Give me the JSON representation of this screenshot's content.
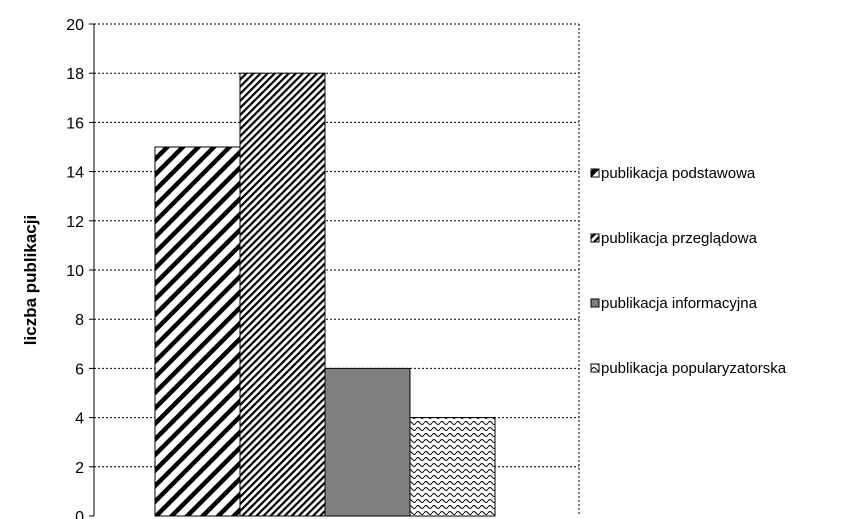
{
  "chart_data": {
    "type": "bar",
    "title": "",
    "xlabel": "",
    "ylabel": "liczba publikacji",
    "ylim": [
      0,
      20
    ],
    "ytick_step": 2,
    "grid": true,
    "legend_position": "right",
    "series": [
      {
        "name": "publikacja podstawowa",
        "value": 15,
        "pattern": "diagonal-wide"
      },
      {
        "name": "publikacja przeglądowa",
        "value": 18,
        "pattern": "diagonal-fine"
      },
      {
        "name": "publikacja informacyjna",
        "value": 6,
        "pattern": "solid-gray",
        "color": "#808080"
      },
      {
        "name": "publikacja popularyzatorska",
        "value": 4,
        "pattern": "wave"
      }
    ]
  }
}
